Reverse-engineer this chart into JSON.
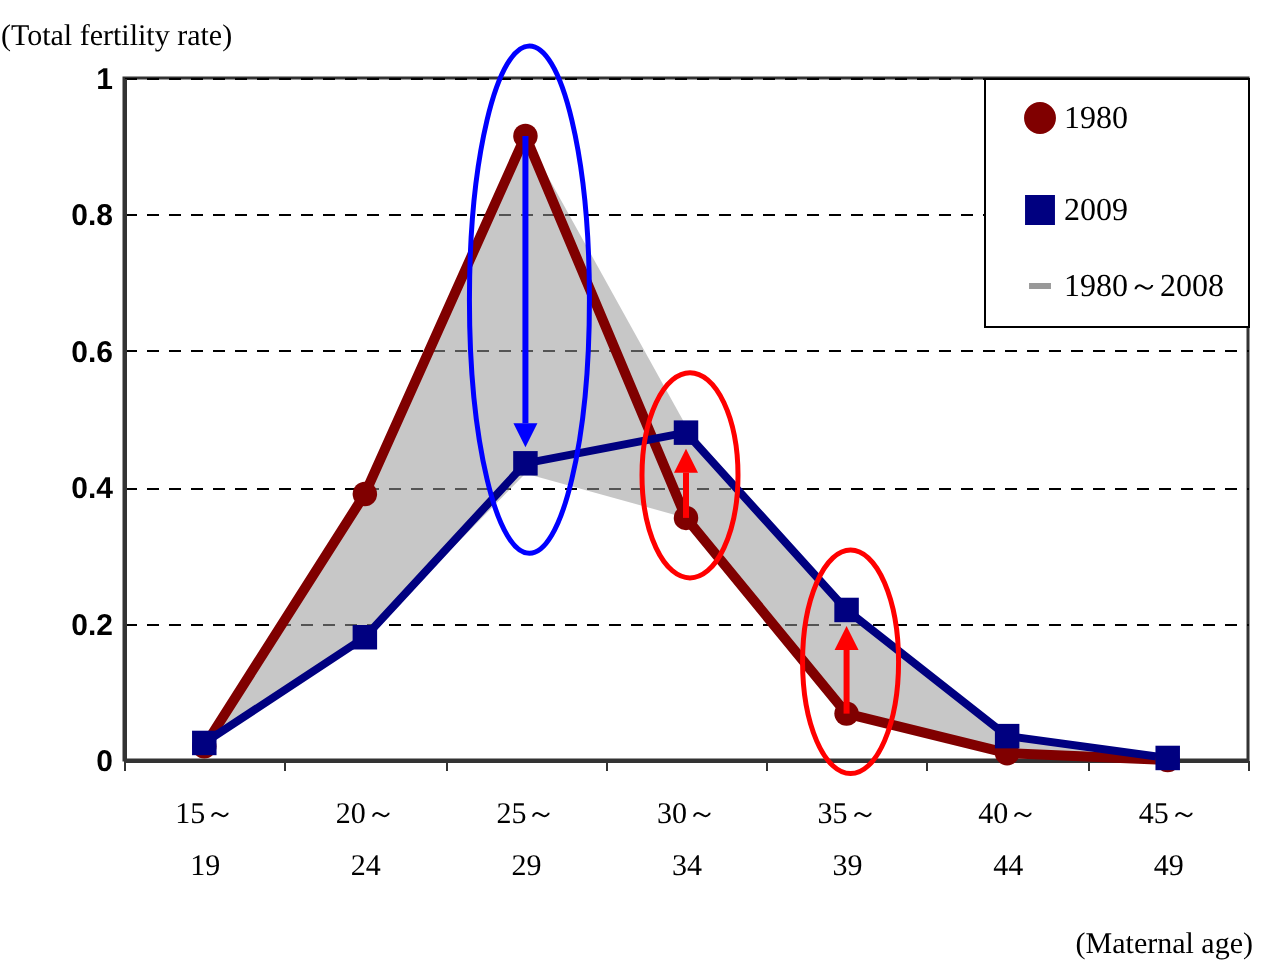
{
  "chart_data": {
    "type": "line",
    "xlabel": "(Maternal age)",
    "ylabel": "(Total fertility rate)",
    "categories": [
      "15～\n19",
      "20～\n24",
      "25～\n29",
      "30～\n34",
      "35～\n39",
      "40～\n44",
      "45～\n49"
    ],
    "ylim": [
      0,
      1
    ],
    "yticks": [
      0,
      0.2,
      0.4,
      0.6,
      0.8,
      1
    ],
    "grid": "y",
    "legend": "top right",
    "line_style": "solid",
    "series": [
      {
        "name": "1980",
        "color": "#800000",
        "marker": "circle",
        "values": [
          0.02,
          0.39,
          0.915,
          0.355,
          0.068,
          0.01,
          0.0
        ]
      },
      {
        "name": "2009",
        "color": "#000080",
        "marker": "square",
        "values": [
          0.025,
          0.18,
          0.435,
          0.48,
          0.22,
          0.035,
          0.003
        ]
      },
      {
        "name": "1980～2008",
        "color": "#999999",
        "marker": "none",
        "values": [
          null,
          null,
          null,
          null,
          null,
          null,
          null
        ],
        "lower": [
          0.02,
          0.18,
          0.42,
          0.355,
          0.068,
          0.01,
          0.0
        ],
        "upper": [
          0.025,
          0.39,
          0.915,
          0.49,
          0.22,
          0.035,
          0.003
        ]
      }
    ]
  }
}
